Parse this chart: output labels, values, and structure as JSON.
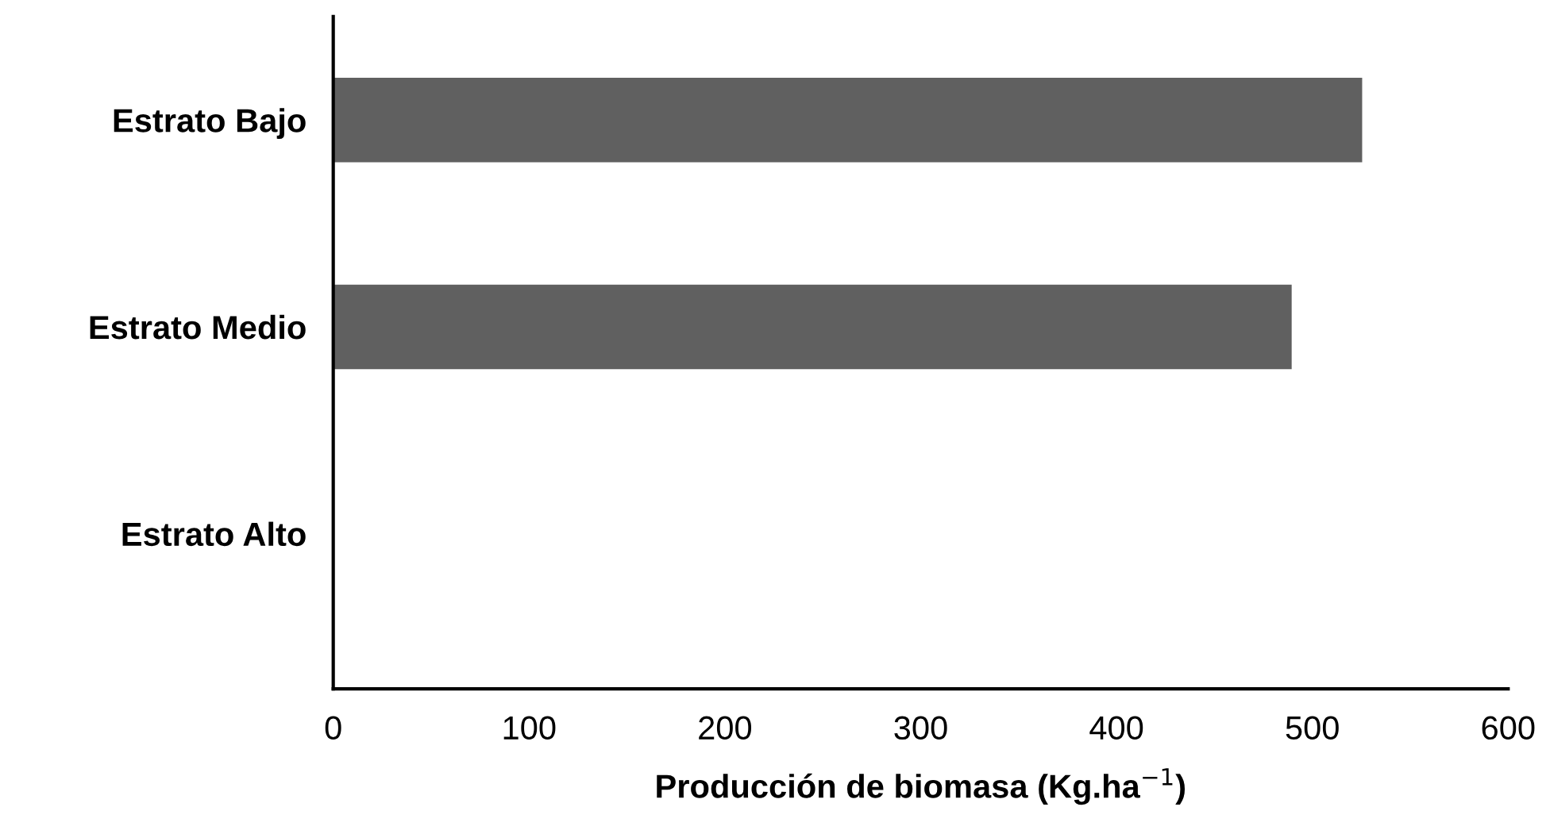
{
  "chart_data": {
    "type": "bar",
    "orientation": "horizontal",
    "xlabel": "Producción de biomasa (Kg.ha$^{−1}$)",
    "categories": [
      "Estrato Bajo",
      "Estrato Medio",
      "Estrato Alto"
    ],
    "values": [
      525,
      489,
      0
    ],
    "color": "#606060",
    "xlim": [
      0,
      600
    ],
    "xticks": [
      0,
      100,
      200,
      300,
      400,
      500,
      600
    ],
    "grid": false,
    "legend": false
  }
}
